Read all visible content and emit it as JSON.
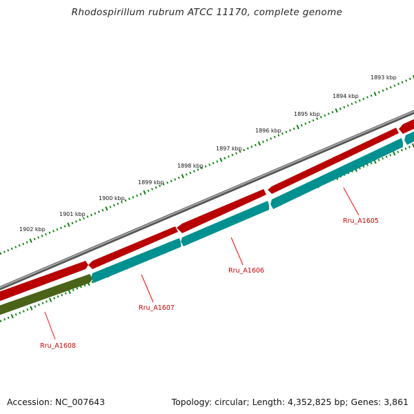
{
  "title": "Rhodospirillum rubrum ATCC 11170, complete genome",
  "footer": {
    "accession": "Accession: NC_007643",
    "summary": "Topology: circular; Length: 4,352,825 bp; Genes: 3,861"
  },
  "ruler": {
    "unit_labels": [
      "1902 kbp",
      "1901 kbp",
      "1900 kbp",
      "1899 kbp",
      "1898 kbp",
      "1897 kbp",
      "1896 kbp",
      "1895 kbp",
      "1894 kbp",
      "1893 kbp"
    ]
  },
  "genes": [
    {
      "locus": "Rru_A1605",
      "color": "#ff0000"
    },
    {
      "locus": "Rru_A1606",
      "color": "#00cccc"
    },
    {
      "locus": "Rru_A1607",
      "color": "#ff0000"
    },
    {
      "locus": "Rru_A1608",
      "color": "#6b8e23"
    }
  ],
  "colors": {
    "backbone": "#808080",
    "forward_strand": "#ff0000",
    "reverse_strand": "#00cccc",
    "other_strand": "#6b8e23",
    "ticks": "#008000",
    "label_lines": "#ff0000"
  }
}
